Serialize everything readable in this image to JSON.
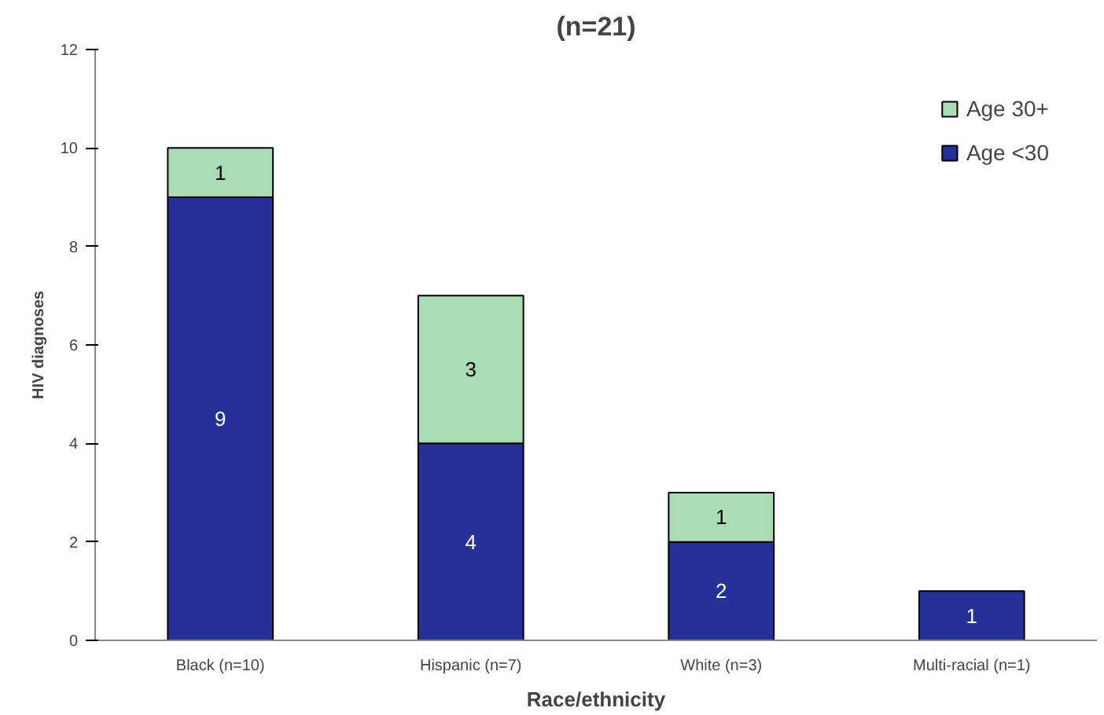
{
  "chart_data": {
    "type": "bar",
    "title": "(n=21)",
    "xlabel": "Race/ethnicity",
    "ylabel": "HIV diagnoses",
    "categories": [
      "Black (n=10)",
      "Hispanic (n=7)",
      "White (n=3)",
      "Multi-racial (n=1)"
    ],
    "stacked": true,
    "series": [
      {
        "name": "Age <30",
        "color": "#25309a",
        "values": [
          9,
          4,
          2,
          1
        ]
      },
      {
        "name": "Age 30+",
        "color": "#a9dcb4",
        "values": [
          1,
          3,
          1,
          null
        ]
      }
    ],
    "ylim": [
      0,
      12
    ],
    "yticks": [
      0,
      2,
      4,
      6,
      8,
      10,
      12
    ],
    "grid": false,
    "legend": "top right",
    "data_labels": true
  }
}
